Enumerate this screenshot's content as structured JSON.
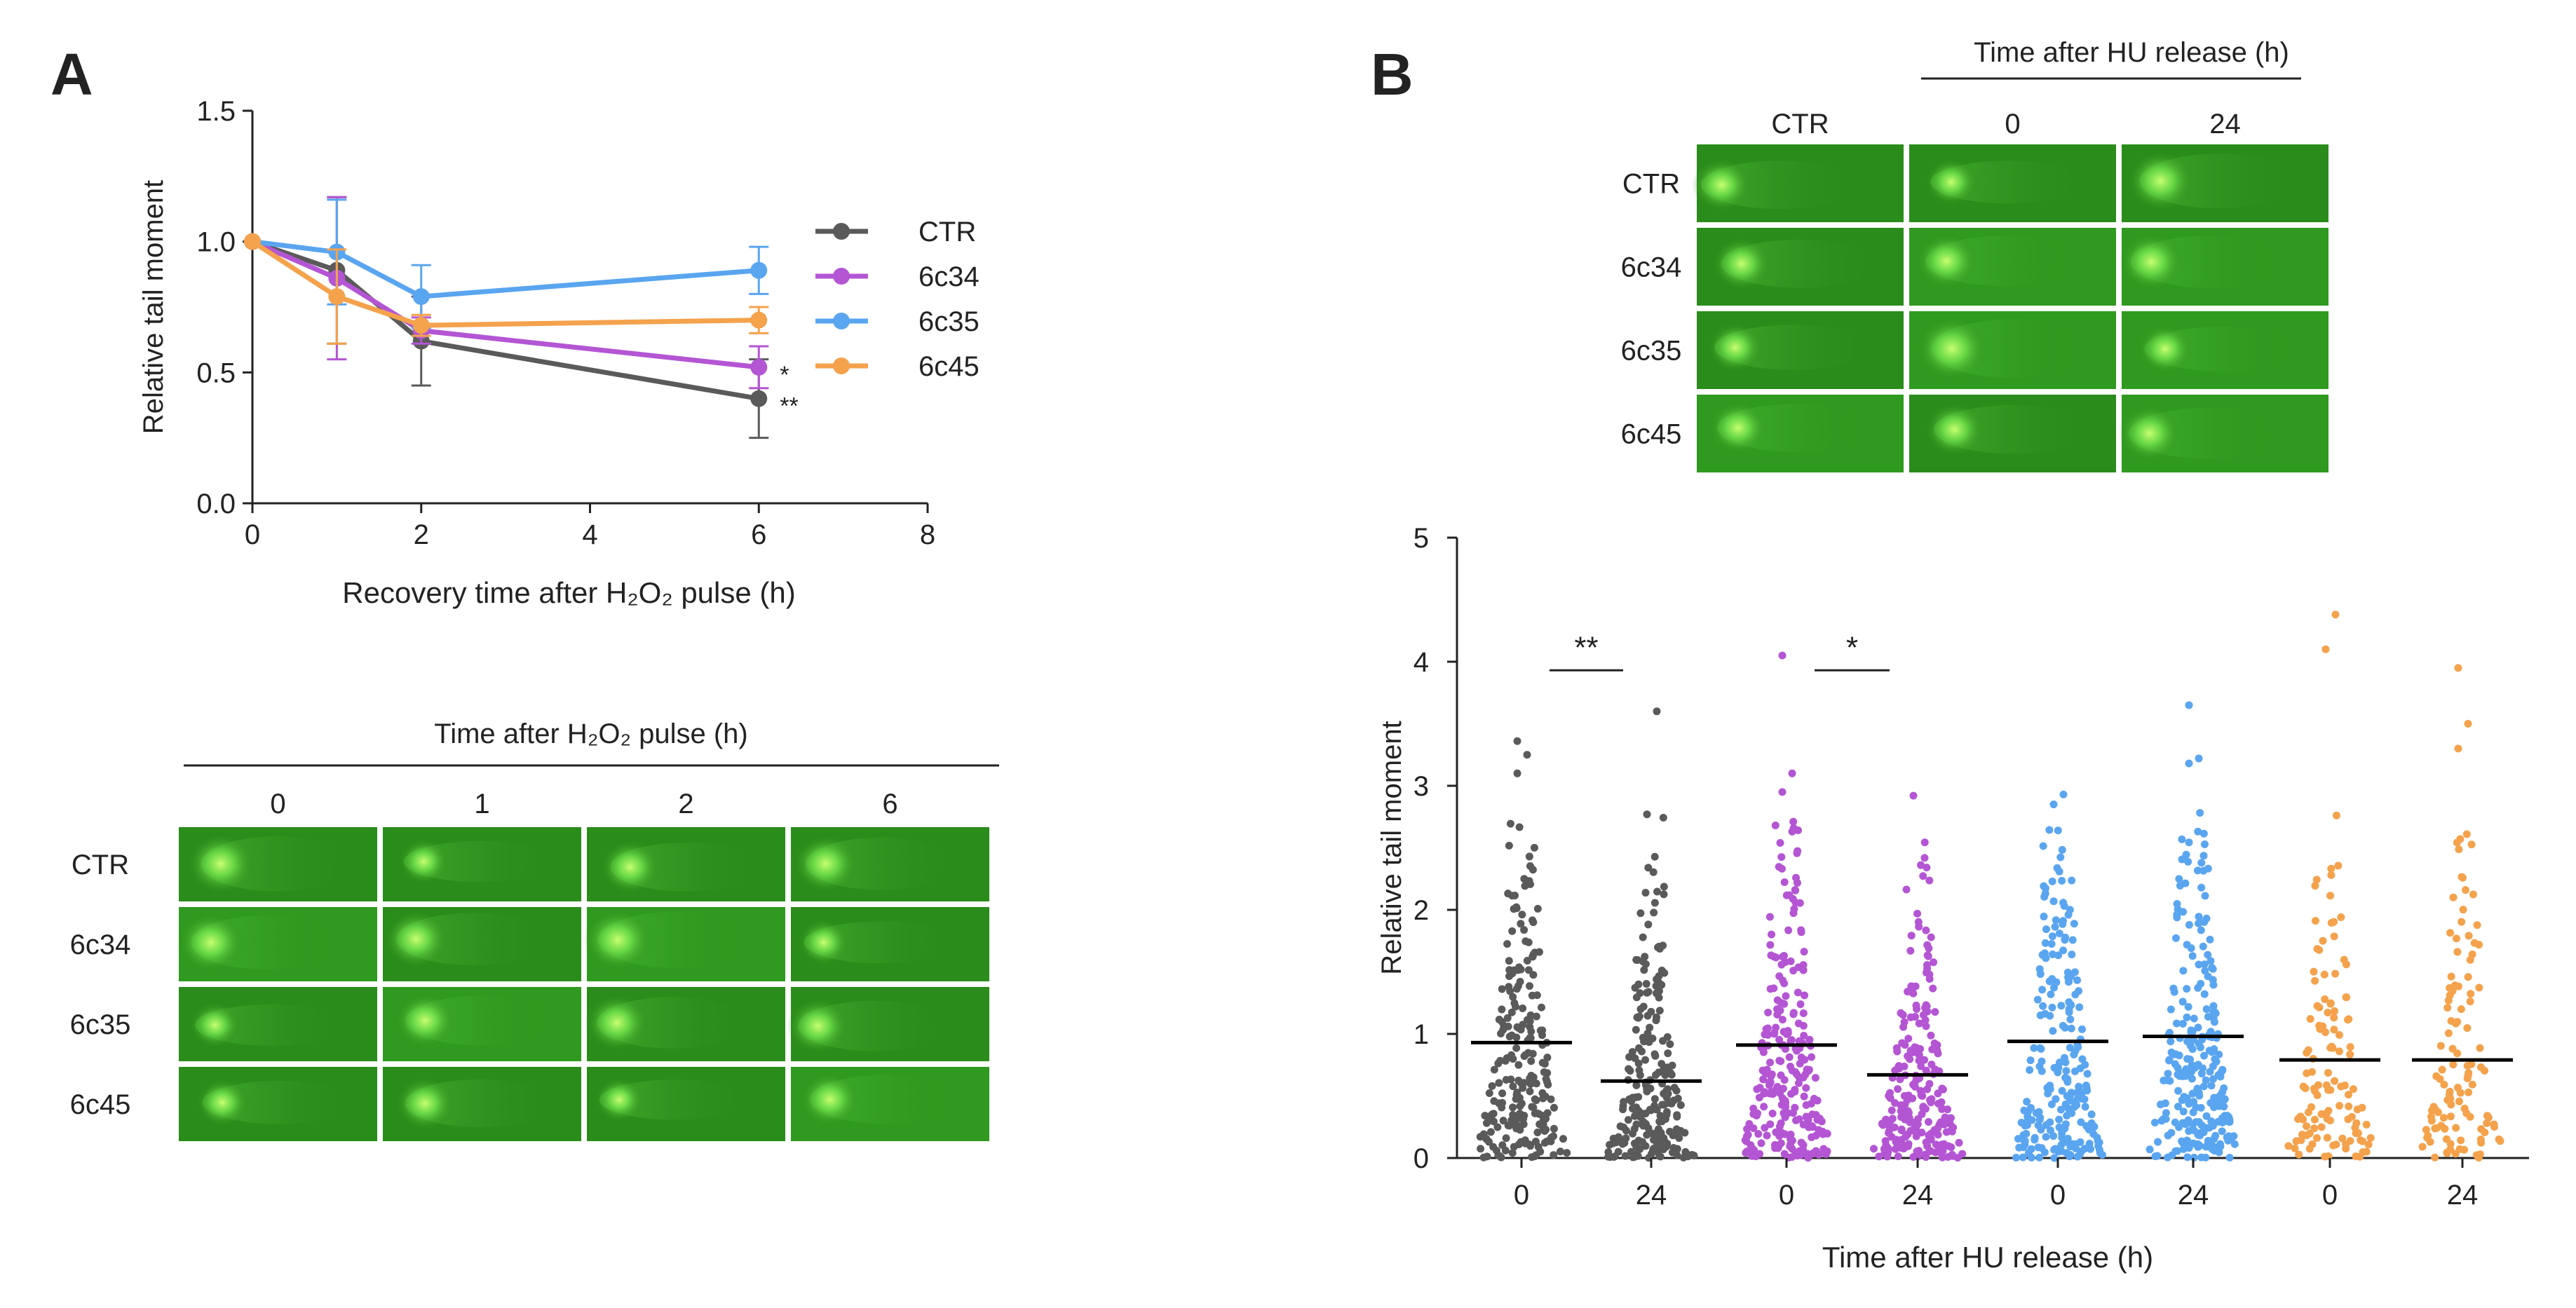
{
  "colors": {
    "CTR": "#5a5a5a",
    "6c34": "#b455d4",
    "6c35": "#5aa5f0",
    "6c45": "#f4a24c",
    "axis": "#222222",
    "mean_line": "#000000"
  },
  "chart_data": [
    {
      "panel": "A",
      "type": "line",
      "xlabel": "Recovery time after H₂O₂ pulse (h)",
      "ylabel": "Relative tail moment",
      "xlim": [
        0,
        8
      ],
      "ylim": [
        0.0,
        1.5
      ],
      "xticks": [
        "0",
        "2",
        "4",
        "6",
        "8"
      ],
      "yticks": [
        "0.0",
        "0.5",
        "1.0",
        "1.5"
      ],
      "x": [
        0,
        1,
        2,
        6
      ],
      "series": [
        {
          "name": "CTR",
          "color": "#5a5a5a",
          "values": [
            1.0,
            0.89,
            0.62,
            0.4
          ],
          "errors": [
            0,
            0.28,
            0.17,
            0.15
          ]
        },
        {
          "name": "6c34",
          "color": "#b455d4",
          "values": [
            1.0,
            0.86,
            0.66,
            0.52
          ],
          "errors": [
            0,
            0.31,
            0.05,
            0.08
          ]
        },
        {
          "name": "6c35",
          "color": "#5aa5f0",
          "values": [
            1.0,
            0.96,
            0.79,
            0.89
          ],
          "errors": [
            0,
            0.2,
            0.12,
            0.09
          ]
        },
        {
          "name": "6c45",
          "color": "#f4a24c",
          "values": [
            1.0,
            0.79,
            0.68,
            0.7
          ],
          "errors": [
            0,
            0.18,
            0.04,
            0.05
          ]
        }
      ],
      "annotations": [
        {
          "series": "6c34",
          "x": 6,
          "text": "*"
        },
        {
          "series": "CTR",
          "x": 6,
          "text": "**"
        }
      ],
      "legend": "right"
    },
    {
      "panel": "B",
      "type": "scatter",
      "xlabel": "Time after HU release (h)",
      "ylabel": "Relative tail moment",
      "ylim": [
        0,
        5
      ],
      "yticks": [
        "0",
        "1",
        "2",
        "3",
        "4",
        "5"
      ],
      "groups": [
        {
          "label": "0",
          "strain": "CTR",
          "color": "#5a5a5a",
          "mean": 0.93,
          "n": 230,
          "max": 3.36,
          "outliers": [
            3.1,
            3.25,
            3.36
          ]
        },
        {
          "label": "24",
          "strain": "CTR",
          "color": "#5a5a5a",
          "mean": 0.62,
          "n": 230,
          "max": 3.6,
          "outliers": [
            2.77,
            3.6
          ]
        },
        {
          "label": "0",
          "strain": "6c34",
          "color": "#b455d4",
          "mean": 0.91,
          "n": 250,
          "max": 4.05,
          "outliers": [
            2.95,
            3.1,
            4.05
          ]
        },
        {
          "label": "24",
          "strain": "6c34",
          "color": "#b455d4",
          "mean": 0.67,
          "n": 230,
          "max": 2.92,
          "outliers": [
            2.92
          ]
        },
        {
          "label": "0",
          "strain": "6c35",
          "color": "#5aa5f0",
          "mean": 0.94,
          "n": 220,
          "max": 2.93,
          "outliers": [
            2.85,
            2.93
          ]
        },
        {
          "label": "24",
          "strain": "6c35",
          "color": "#5aa5f0",
          "mean": 0.98,
          "n": 260,
          "max": 3.65,
          "outliers": [
            3.18,
            3.22,
            3.65
          ]
        },
        {
          "label": "0",
          "strain": "6c45",
          "color": "#f4a24c",
          "mean": 0.79,
          "n": 120,
          "max": 4.38,
          "outliers": [
            4.1,
            4.38
          ]
        },
        {
          "label": "24",
          "strain": "6c45",
          "color": "#f4a24c",
          "mean": 0.79,
          "n": 110,
          "max": 3.95,
          "outliers": [
            3.3,
            3.5,
            3.95
          ]
        }
      ],
      "significance": [
        {
          "from": 0,
          "to": 1,
          "text": "**",
          "y": 4.1
        },
        {
          "from": 2,
          "to": 3,
          "text": "*",
          "y": 4.1
        }
      ]
    }
  ],
  "panel_a": {
    "letter": "A",
    "images_header": "Time after H₂O₂ pulse (h)",
    "image_cols": [
      "0",
      "1",
      "2",
      "6"
    ],
    "image_rows": [
      "CTR",
      "6c34",
      "6c35",
      "6c45"
    ]
  },
  "panel_b": {
    "letter": "B",
    "images_header": "Time after HU release (h)",
    "image_cols": [
      "CTR",
      "0",
      "24"
    ],
    "image_rows": [
      "CTR",
      "6c34",
      "6c35",
      "6c45"
    ]
  }
}
